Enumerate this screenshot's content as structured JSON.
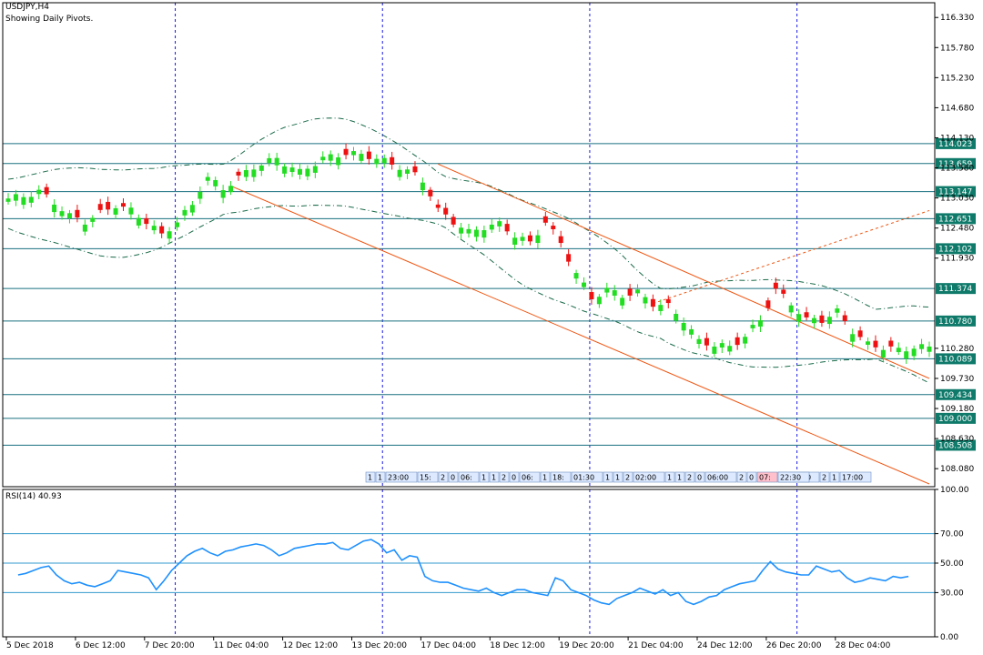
{
  "header": {
    "symbol_line": "USDJPY,H4",
    "subtitle": "Showing Daily Pivots."
  },
  "rsi_panel": {
    "label": "RSI(14) 40.93"
  },
  "colors": {
    "bull": "#22dd22",
    "bear": "#ee1111",
    "channel": "#ee5511",
    "pivot_line": "#1a7080",
    "rsi_line": "#1e90ff",
    "rsi_level": "#3399cc",
    "grid_vertical": "#1a1ae0",
    "envelope": "#1a6b4a",
    "pivot_label_bg": "#0f7a6a"
  },
  "timeline_tags": [
    {
      "text": "1",
      "pink": false
    },
    {
      "text": "1",
      "pink": false
    },
    {
      "text": "23:00",
      "pink": false
    },
    {
      "text": "15:",
      "pink": false
    },
    {
      "text": "2",
      "pink": false
    },
    {
      "text": "0",
      "pink": false
    },
    {
      "text": "06:",
      "pink": false
    },
    {
      "text": "1",
      "pink": false
    },
    {
      "text": "1",
      "pink": false
    },
    {
      "text": "2",
      "pink": false
    },
    {
      "text": "0",
      "pink": false
    },
    {
      "text": "06:",
      "pink": false
    },
    {
      "text": "1",
      "pink": false
    },
    {
      "text": "18:",
      "pink": false
    },
    {
      "text": "01:30",
      "pink": false
    },
    {
      "text": "1",
      "pink": false
    },
    {
      "text": "1",
      "pink": false
    },
    {
      "text": "2",
      "pink": false
    },
    {
      "text": "02:00",
      "pink": false
    },
    {
      "text": "1",
      "pink": false
    },
    {
      "text": "1",
      "pink": false
    },
    {
      "text": "2",
      "pink": false
    },
    {
      "text": "0",
      "pink": false
    },
    {
      "text": "06:00",
      "pink": false
    },
    {
      "text": "2",
      "pink": false
    },
    {
      "text": "0",
      "pink": false
    },
    {
      "text": "07:",
      "pink": true
    },
    {
      "text": "1",
      "pink": false
    },
    {
      "text": "16:00",
      "pink": false
    },
    {
      "text": "2",
      "pink": false
    },
    {
      "text": "1",
      "pink": false
    },
    {
      "text": "17:00",
      "pink": false
    },
    {
      "text": "22:30",
      "pink": false
    }
  ],
  "chart_data": [
    {
      "type": "candlestick",
      "title": "USDJPY,H4",
      "subtitle": "Showing Daily Pivots.",
      "ylim": [
        107.75,
        116.6
      ],
      "y_ticks": [
        116.33,
        115.78,
        115.23,
        114.68,
        114.13,
        113.58,
        113.03,
        112.48,
        111.93,
        110.28,
        109.73,
        109.18,
        108.63,
        108.08
      ],
      "pivot_levels": [
        114.023,
        113.659,
        113.147,
        112.651,
        112.102,
        111.374,
        110.78,
        110.089,
        109.434,
        109.0,
        108.508
      ],
      "x_labels": [
        "5 Dec 2018",
        "6 Dec 12:00",
        "7 Dec 20:00",
        "11 Dec 04:00",
        "12 Dec 12:00",
        "13 Dec 20:00",
        "17 Dec 04:00",
        "18 Dec 12:00",
        "19 Dec 20:00",
        "21 Dec 04:00",
        "24 Dec 12:00",
        "26 Dec 20:00",
        "28 Dec 04:00"
      ],
      "close_path": [
        [
          0,
          113.02
        ],
        [
          2,
          113.06
        ],
        [
          4,
          113.15
        ],
        [
          6,
          112.95
        ],
        [
          8,
          112.7
        ],
        [
          10,
          112.6
        ],
        [
          12,
          112.75
        ],
        [
          14,
          112.9
        ],
        [
          16,
          112.8
        ],
        [
          18,
          112.6
        ],
        [
          20,
          112.35
        ],
        [
          22,
          112.6
        ],
        [
          24,
          112.9
        ],
        [
          25,
          113.2
        ],
        [
          26,
          113.4
        ],
        [
          28,
          113.2
        ],
        [
          30,
          113.4
        ],
        [
          32,
          113.6
        ],
        [
          35,
          113.75
        ],
        [
          38,
          113.5
        ],
        [
          41,
          113.75
        ],
        [
          44,
          113.85
        ],
        [
          47,
          113.8
        ],
        [
          49,
          113.7
        ],
        [
          51,
          113.6
        ],
        [
          53,
          113.45
        ],
        [
          54,
          113.35
        ],
        [
          55,
          113.1
        ],
        [
          56,
          112.8
        ],
        [
          58,
          112.6
        ],
        [
          60,
          112.4
        ],
        [
          62,
          112.5
        ],
        [
          64,
          112.55
        ],
        [
          66,
          112.35
        ],
        [
          68,
          112.2
        ],
        [
          70,
          112.6
        ],
        [
          72,
          112.2
        ],
        [
          74,
          111.65
        ],
        [
          76,
          111.2
        ],
        [
          78,
          111.35
        ],
        [
          80,
          111.25
        ],
        [
          82,
          111.3
        ],
        [
          84,
          111.1
        ],
        [
          86,
          111.05
        ],
        [
          88,
          110.8
        ],
        [
          90,
          110.4
        ],
        [
          92,
          110.35
        ],
        [
          94,
          110.3
        ],
        [
          96,
          110.5
        ],
        [
          98,
          110.8
        ],
        [
          100,
          111.35
        ],
        [
          102,
          111.1
        ],
        [
          104,
          110.8
        ],
        [
          106,
          110.8
        ],
        [
          108,
          110.95
        ],
        [
          110,
          110.6
        ],
        [
          112,
          110.35
        ],
        [
          114,
          110.3
        ],
        [
          116,
          110.25
        ],
        [
          118,
          110.3
        ]
      ],
      "bear_bars": [
        5,
        9,
        12,
        13,
        15,
        18,
        20,
        30,
        44,
        47,
        50,
        53,
        55,
        56,
        57,
        58,
        65,
        68,
        70,
        71,
        72,
        73,
        76,
        81,
        84,
        86,
        91,
        95,
        99,
        100,
        101,
        104,
        106,
        109,
        111,
        113,
        115
      ],
      "channel_upper": [
        [
          56,
          113.65
        ],
        [
          120,
          109.73
        ]
      ],
      "channel_lower": [
        [
          29,
          113.25
        ],
        [
          120,
          107.8
        ]
      ],
      "dashed_projection": [
        [
          84,
          111.1
        ],
        [
          120,
          112.8
        ]
      ]
    },
    {
      "type": "line",
      "name": "RSI(14)",
      "title": "RSI(14) 40.93",
      "ylim": [
        0,
        100
      ],
      "y_ticks": [
        100.0,
        70.0,
        50.0,
        30.0,
        0.0
      ],
      "levels": [
        70,
        50,
        30
      ],
      "values": [
        42,
        43,
        45,
        47,
        48,
        42,
        38,
        36,
        37,
        35,
        34,
        36,
        38,
        45,
        44,
        43,
        42,
        40,
        32,
        38,
        45,
        50,
        55,
        58,
        60,
        57,
        55,
        58,
        59,
        61,
        62,
        63,
        62,
        59,
        55,
        57,
        60,
        61,
        62,
        63,
        63,
        64,
        60,
        59,
        62,
        65,
        66,
        63,
        57,
        59,
        52,
        55,
        54,
        41,
        38,
        37,
        37,
        35,
        33,
        32,
        31,
        33,
        30,
        28,
        30,
        32,
        32,
        30,
        29,
        28,
        40,
        38,
        32,
        30,
        28,
        25,
        23,
        22,
        26,
        28,
        30,
        33,
        31,
        29,
        32,
        28,
        30,
        24,
        22,
        24,
        27,
        28,
        32,
        34,
        36,
        37,
        38,
        45,
        51,
        46,
        44,
        43,
        42,
        42,
        48,
        46,
        44,
        45,
        40,
        37,
        38,
        40,
        39,
        38,
        41,
        40,
        41
      ],
      "rsi_x_from": 2
    }
  ]
}
